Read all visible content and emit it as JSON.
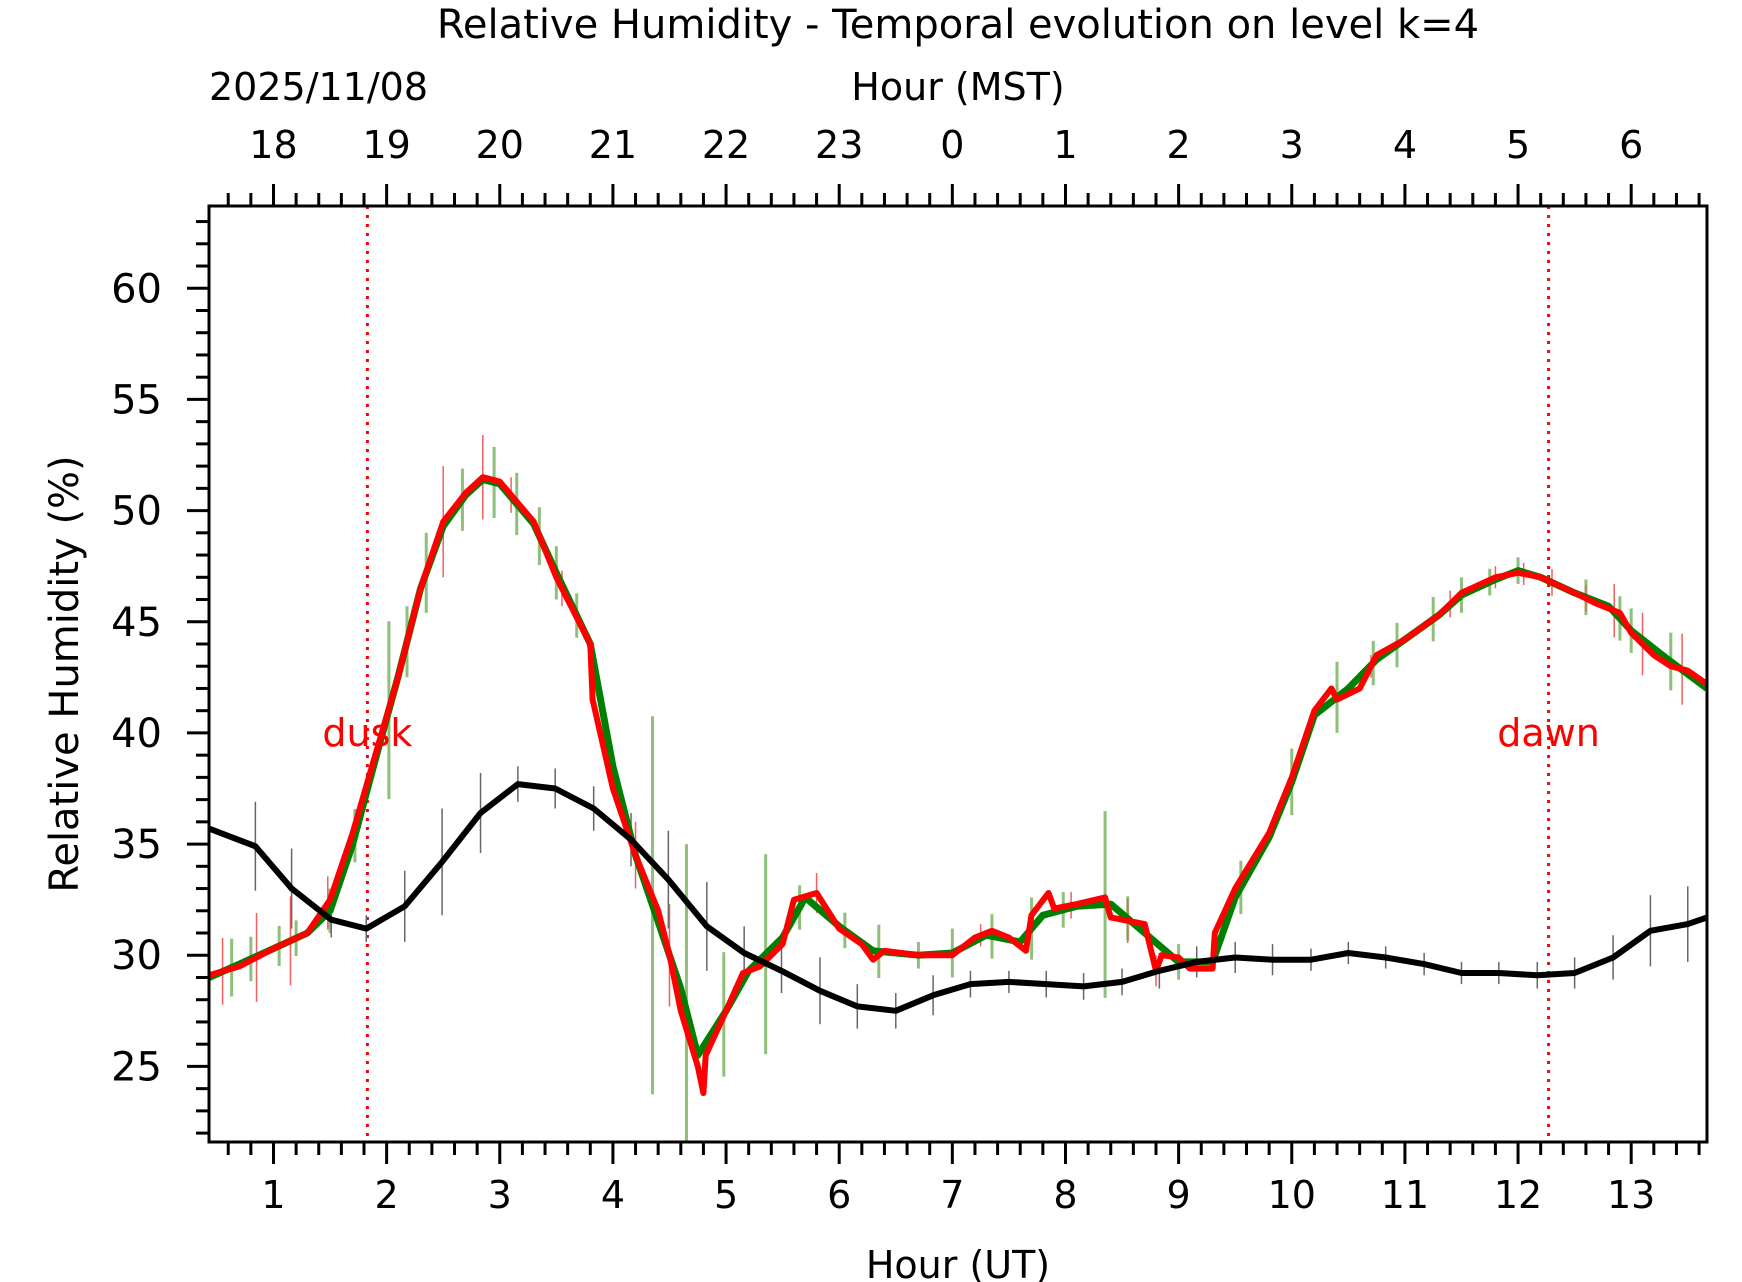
{
  "chart_data": {
    "type": "line",
    "title": "Relative Humidity - Temporal evolution on level k=4",
    "xlabel": "Hour (UT)",
    "top_xlabel": "Hour (MST)",
    "date_label": "2025/11/08",
    "ylabel": "Relative Humidity (%)",
    "xlim": [
      0.43,
      13.67
    ],
    "ylim": [
      21.6,
      63.7
    ],
    "x_ticks": [
      1,
      2,
      3,
      4,
      5,
      6,
      7,
      8,
      9,
      10,
      11,
      12,
      13
    ],
    "x_tick_labels": [
      "1",
      "2",
      "3",
      "4",
      "5",
      "6",
      "7",
      "8",
      "9",
      "10",
      "11",
      "12",
      "13"
    ],
    "top_tick_labels": [
      "18",
      "19",
      "20",
      "21",
      "22",
      "23",
      "0",
      "1",
      "2",
      "3",
      "4",
      "5",
      "6"
    ],
    "y_ticks": [
      25,
      30,
      35,
      40,
      45,
      50,
      55,
      60
    ],
    "y_tick_labels": [
      "25",
      "30",
      "35",
      "40",
      "45",
      "50",
      "55",
      "60"
    ],
    "grid": false,
    "annotations": [
      {
        "text": "dusk",
        "x": 1.83,
        "y": 40,
        "color": "#ff0000"
      },
      {
        "text": "dawn",
        "x": 12.27,
        "y": 40,
        "color": "#ff0000"
      }
    ],
    "series": [
      {
        "name": "black",
        "color": "#000000",
        "x": [
          0.43,
          0.84,
          1.16,
          1.51,
          1.82,
          2.16,
          2.49,
          2.83,
          3.16,
          3.49,
          3.83,
          4.16,
          4.49,
          4.83,
          5.16,
          5.49,
          5.83,
          6.16,
          6.5,
          6.83,
          7.16,
          7.5,
          7.83,
          8.16,
          8.5,
          8.83,
          9.16,
          9.5,
          9.83,
          10.17,
          10.5,
          10.83,
          11.17,
          11.5,
          11.83,
          12.17,
          12.5,
          12.84,
          13.17,
          13.5,
          13.67
        ],
        "values": [
          35.7,
          34.9,
          33.0,
          31.6,
          31.2,
          32.2,
          34.2,
          36.4,
          37.7,
          37.5,
          36.6,
          35.2,
          33.4,
          31.3,
          30.1,
          29.3,
          28.4,
          27.7,
          27.5,
          28.2,
          28.7,
          28.8,
          28.7,
          28.6,
          28.8,
          29.3,
          29.7,
          29.9,
          29.8,
          29.8,
          30.1,
          29.9,
          29.6,
          29.2,
          29.2,
          29.1,
          29.2,
          29.9,
          31.1,
          31.4,
          31.7
        ],
        "errors": [
          1.5,
          2.0,
          1.8,
          0.8,
          0.6,
          1.6,
          2.4,
          1.8,
          0.8,
          0.9,
          1.0,
          1.2,
          2.2,
          2.0,
          1.2,
          1.0,
          1.5,
          1.0,
          0.8,
          0.9,
          0.6,
          0.5,
          0.6,
          0.6,
          0.6,
          0.8,
          0.7,
          0.7,
          0.7,
          0.5,
          0.5,
          0.5,
          0.5,
          0.5,
          0.5,
          0.6,
          0.7,
          1.0,
          1.6,
          1.7,
          1.0
        ]
      },
      {
        "name": "green",
        "color": "#008000",
        "x": [
          0.43,
          0.7,
          1.0,
          1.3,
          1.5,
          1.7,
          1.9,
          2.1,
          2.3,
          2.5,
          2.7,
          2.85,
          3.0,
          3.3,
          3.5,
          3.8,
          4.0,
          4.2,
          4.4,
          4.6,
          4.75,
          5.0,
          5.2,
          5.5,
          5.7,
          6.0,
          6.3,
          6.7,
          7.0,
          7.3,
          7.6,
          7.8,
          8.1,
          8.4,
          8.7,
          9.0,
          9.3,
          9.5,
          9.8,
          10.0,
          10.2,
          10.5,
          10.75,
          11.0,
          11.3,
          11.5,
          11.8,
          12.0,
          12.2,
          12.5,
          12.8,
          13.0,
          13.3,
          13.67
        ],
        "values": [
          29.0,
          29.6,
          30.3,
          31.0,
          32.0,
          35.0,
          38.8,
          42.5,
          46.5,
          49.3,
          50.7,
          51.4,
          51.2,
          49.4,
          47.2,
          44.0,
          38.5,
          34.5,
          31.5,
          28.5,
          25.5,
          27.5,
          29.3,
          30.8,
          32.6,
          31.3,
          30.2,
          30.0,
          30.1,
          30.9,
          30.6,
          31.8,
          32.2,
          32.3,
          31.0,
          29.7,
          29.7,
          32.6,
          35.3,
          37.8,
          40.8,
          42.0,
          43.3,
          44.2,
          45.3,
          46.2,
          46.9,
          47.3,
          47.0,
          46.3,
          45.7,
          44.6,
          43.4,
          42.0
        ],
        "errorbars": [
          [
            0.63,
            1.3
          ],
          [
            0.8,
            1.0
          ],
          [
            1.05,
            0.9
          ],
          [
            1.2,
            0.8
          ],
          [
            1.5,
            1.0
          ],
          [
            1.72,
            1.2
          ],
          [
            2.02,
            4.0
          ],
          [
            2.18,
            1.6
          ],
          [
            2.35,
            1.8
          ],
          [
            2.67,
            1.4
          ],
          [
            2.95,
            1.6
          ],
          [
            3.15,
            1.4
          ],
          [
            3.35,
            1.3
          ],
          [
            3.5,
            1.2
          ],
          [
            3.68,
            1.0
          ],
          [
            4.35,
            8.5
          ],
          [
            4.65,
            7.5
          ],
          [
            4.98,
            2.8
          ],
          [
            5.35,
            4.5
          ],
          [
            5.65,
            1.0
          ],
          [
            6.05,
            0.8
          ],
          [
            6.35,
            1.2
          ],
          [
            6.7,
            0.6
          ],
          [
            7.0,
            1.1
          ],
          [
            7.35,
            1.0
          ],
          [
            7.7,
            1.4
          ],
          [
            7.98,
            0.8
          ],
          [
            8.35,
            4.2
          ],
          [
            8.55,
            1.0
          ],
          [
            9.0,
            0.8
          ],
          [
            9.55,
            1.2
          ],
          [
            10.0,
            1.5
          ],
          [
            10.4,
            1.6
          ],
          [
            10.72,
            1.0
          ],
          [
            10.93,
            1.0
          ],
          [
            11.25,
            1.0
          ],
          [
            11.5,
            0.8
          ],
          [
            11.75,
            0.6
          ],
          [
            12.0,
            0.6
          ],
          [
            12.6,
            0.8
          ],
          [
            12.9,
            1.0
          ],
          [
            13.0,
            1.0
          ],
          [
            13.35,
            1.3
          ]
        ]
      },
      {
        "name": "red",
        "color": "#ff0000",
        "x": [
          0.43,
          0.7,
          1.0,
          1.3,
          1.5,
          1.7,
          1.9,
          2.1,
          2.3,
          2.5,
          2.7,
          2.85,
          3.0,
          3.3,
          3.5,
          3.75,
          3.8,
          3.82,
          4.0,
          4.2,
          4.4,
          4.5,
          4.6,
          4.75,
          4.8,
          4.82,
          5.0,
          5.15,
          5.3,
          5.5,
          5.6,
          5.8,
          6.0,
          6.2,
          6.3,
          6.4,
          6.7,
          7.0,
          7.2,
          7.35,
          7.5,
          7.65,
          7.7,
          7.85,
          7.9,
          8.1,
          8.35,
          8.4,
          8.7,
          8.8,
          8.85,
          9.0,
          9.1,
          9.3,
          9.32,
          9.5,
          9.8,
          10.0,
          10.2,
          10.35,
          10.4,
          10.6,
          10.75,
          11.0,
          11.3,
          11.5,
          11.8,
          12.0,
          12.2,
          12.5,
          12.7,
          12.9,
          13.0,
          13.2,
          13.35,
          13.5,
          13.67
        ],
        "values": [
          29.1,
          29.5,
          30.3,
          31.0,
          32.5,
          35.5,
          39.0,
          42.5,
          46.5,
          49.5,
          50.8,
          51.5,
          51.3,
          49.5,
          47.0,
          44.5,
          44.0,
          41.5,
          37.5,
          34.5,
          32.0,
          30.0,
          27.5,
          25.0,
          23.8,
          25.5,
          27.5,
          29.2,
          29.5,
          30.5,
          32.5,
          32.8,
          31.2,
          30.5,
          29.8,
          30.2,
          30.0,
          30.0,
          30.8,
          31.1,
          30.8,
          30.2,
          31.8,
          32.8,
          32.1,
          32.3,
          32.6,
          31.7,
          31.4,
          29.3,
          30.0,
          29.9,
          29.4,
          29.4,
          31.0,
          33.0,
          35.5,
          38.0,
          41.0,
          42.0,
          41.5,
          42.0,
          43.5,
          44.2,
          45.3,
          46.3,
          47.0,
          47.2,
          47.0,
          46.3,
          45.8,
          45.4,
          44.5,
          43.5,
          43.0,
          42.8,
          42.2
        ],
        "errorbars": [
          [
            0.55,
            1.5
          ],
          [
            0.85,
            2.0
          ],
          [
            1.15,
            2.0
          ],
          [
            1.48,
            1.2
          ],
          [
            2.5,
            2.5
          ],
          [
            2.85,
            1.9
          ],
          [
            3.1,
            0.8
          ],
          [
            3.55,
            0.8
          ],
          [
            4.2,
            1.5
          ],
          [
            4.5,
            2.3
          ],
          [
            5.8,
            0.9
          ],
          [
            7.25,
            0.5
          ],
          [
            8.05,
            0.6
          ],
          [
            8.55,
            1.0
          ],
          [
            8.8,
            0.7
          ],
          [
            10.7,
            0.5
          ],
          [
            11.4,
            0.6
          ],
          [
            11.8,
            0.5
          ],
          [
            12.05,
            0.5
          ],
          [
            12.3,
            0.6
          ],
          [
            12.6,
            0.6
          ],
          [
            12.85,
            1.2
          ],
          [
            13.1,
            1.4
          ],
          [
            13.45,
            1.6
          ]
        ]
      }
    ]
  }
}
